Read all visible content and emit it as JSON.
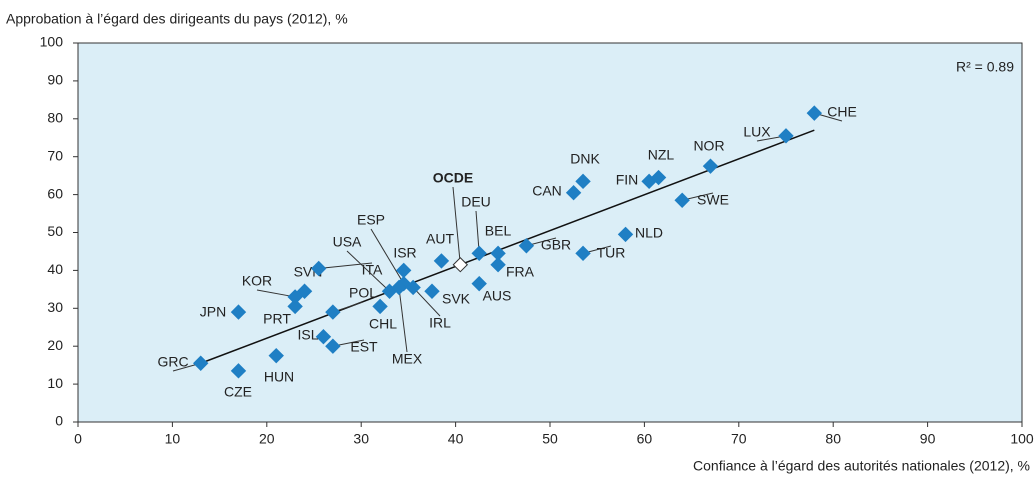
{
  "chart_data": {
    "type": "scatter",
    "ylabel": "Approbation à l’égard des dirigeants du pays (2012), %",
    "xlabel": "Confiance à l’égard des autorités nationales (2012), %",
    "annotation": "R² = 0.89",
    "xlim": [
      0,
      100
    ],
    "xticks": [
      0,
      10,
      20,
      30,
      40,
      50,
      60,
      70,
      80,
      90,
      100
    ],
    "ylim": [
      0,
      100
    ],
    "yticks": [
      0,
      10,
      20,
      30,
      40,
      50,
      60,
      70,
      80,
      90,
      100
    ],
    "background": "#dbeef7",
    "series": [
      {
        "color": "#1f7fc4",
        "labels": [
          "GRC",
          "CZE",
          "HUN",
          "JPN",
          "ISL",
          "EST",
          "PRT",
          "KOR",
          "SVN",
          "POL",
          "ITA",
          "CHL",
          "USA",
          "ESP",
          "ISR",
          "MEX",
          "IRL",
          "SVK",
          "AUS",
          "AUT",
          "DEU",
          "BEL",
          "FRA",
          "GBR",
          "TUR",
          "NLD",
          "CAN",
          "DNK",
          "FIN",
          "NZL",
          "SWE",
          "NOR",
          "LUX",
          "CHE"
        ],
        "x": [
          13,
          17,
          21,
          17,
          26,
          27,
          23,
          23,
          24,
          27,
          25.5,
          32,
          33,
          34.5,
          34.5,
          34,
          35.5,
          37.5,
          42.5,
          38.5,
          42.5,
          44.5,
          44.5,
          47.5,
          53.5,
          58,
          52.5,
          53.5,
          60.5,
          61.5,
          64,
          67,
          75,
          78
        ],
        "y": [
          15.5,
          13.5,
          17.5,
          29,
          22.5,
          20,
          30.5,
          33,
          34.5,
          29,
          40.5,
          30.5,
          34.5,
          36.5,
          40,
          35.5,
          35.5,
          34.5,
          36.5,
          42.5,
          44.5,
          44.5,
          41.5,
          46.5,
          44.5,
          49.5,
          60.5,
          63.5,
          63.5,
          64.5,
          58.5,
          67.5,
          75.5,
          81.5
        ]
      },
      {
        "color": "#ffffff",
        "labels": [
          "OCDE"
        ],
        "x": [
          40.5
        ],
        "y": [
          41.5
        ],
        "bold": true
      }
    ],
    "trendline": {
      "x": [
        13,
        78
      ],
      "y": [
        15.5,
        77
      ]
    }
  }
}
